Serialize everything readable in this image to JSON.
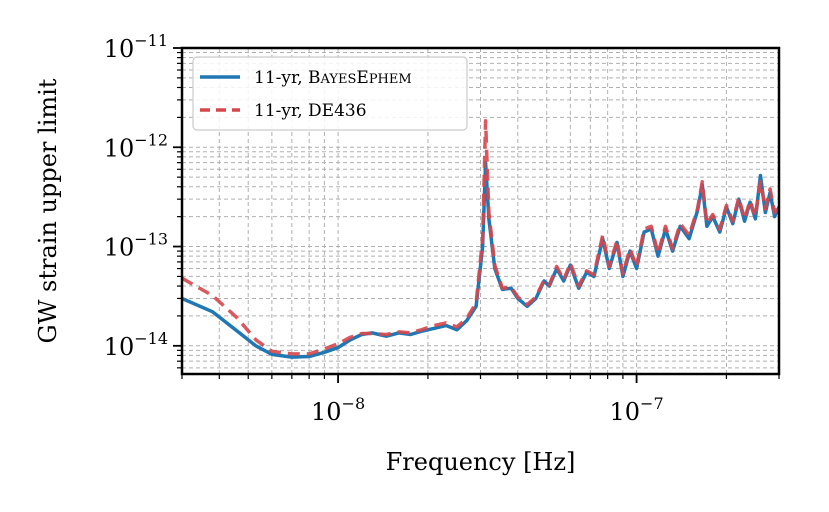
{
  "chart_data": {
    "type": "line",
    "xlabel": "Frequency [Hz]",
    "ylabel": "GW strain upper limit",
    "xscale": "log",
    "yscale": "log",
    "xlim": [
      3e-09,
      3e-07
    ],
    "ylim": [
      5.2e-15,
      1e-11
    ],
    "x_ticks": [
      {
        "value": 1e-08,
        "mantissa": "10",
        "exponent": "−8"
      },
      {
        "value": 1e-07,
        "mantissa": "10",
        "exponent": "−7"
      }
    ],
    "y_ticks": [
      {
        "value": 1e-14,
        "mantissa": "10",
        "exponent": "−14"
      },
      {
        "value": 1e-13,
        "mantissa": "10",
        "exponent": "−13"
      },
      {
        "value": 1e-12,
        "mantissa": "10",
        "exponent": "−12"
      },
      {
        "value": 1e-11,
        "mantissa": "10",
        "exponent": "−11"
      }
    ],
    "grid": true,
    "legend_position": "top-left",
    "series": [
      {
        "name_parts": [
          "11-yr, ",
          "B",
          "AYES",
          "E",
          "PHEM"
        ],
        "color": "#1f77b4",
        "style": "solid",
        "points": [
          [
            3e-09,
            3e-14
          ],
          [
            3.8e-09,
            2.2e-14
          ],
          [
            4.6e-09,
            1.4e-14
          ],
          [
            5.3e-09,
            1e-14
          ],
          [
            6e-09,
            8.2e-15
          ],
          [
            7e-09,
            7.7e-15
          ],
          [
            8e-09,
            7.8e-15
          ],
          [
            9e-09,
            8.6e-15
          ],
          [
            1e-08,
            9.6e-15
          ],
          [
            1.1e-08,
            1.15e-14
          ],
          [
            1.2e-08,
            1.3e-14
          ],
          [
            1.3e-08,
            1.35e-14
          ],
          [
            1.45e-08,
            1.25e-14
          ],
          [
            1.6e-08,
            1.35e-14
          ],
          [
            1.75e-08,
            1.3e-14
          ],
          [
            1.9e-08,
            1.4e-14
          ],
          [
            2.1e-08,
            1.5e-14
          ],
          [
            2.3e-08,
            1.6e-14
          ],
          [
            2.5e-08,
            1.45e-14
          ],
          [
            2.7e-08,
            1.8e-14
          ],
          [
            2.9e-08,
            2.5e-14
          ],
          [
            3.05e-08,
            1e-13
          ],
          [
            3.12e-08,
            7e-13
          ],
          [
            3.2e-08,
            1.9e-13
          ],
          [
            3.35e-08,
            6e-14
          ],
          [
            3.55e-08,
            3.7e-14
          ],
          [
            3.8e-08,
            3.8e-14
          ],
          [
            4e-08,
            3e-14
          ],
          [
            4.3e-08,
            2.5e-14
          ],
          [
            4.6e-08,
            3e-14
          ],
          [
            4.9e-08,
            4.5e-14
          ],
          [
            5.1e-08,
            4e-14
          ],
          [
            5.4e-08,
            6e-14
          ],
          [
            5.7e-08,
            4.5e-14
          ],
          [
            6e-08,
            6.5e-14
          ],
          [
            6.4e-08,
            3.8e-14
          ],
          [
            6.8e-08,
            5.5e-14
          ],
          [
            7.2e-08,
            5e-14
          ],
          [
            7.7e-08,
            1.2e-13
          ],
          [
            8.1e-08,
            6e-14
          ],
          [
            8.6e-08,
            1.1e-13
          ],
          [
            9e-08,
            5e-14
          ],
          [
            9.5e-08,
            9e-14
          ],
          [
            1e-07,
            6e-14
          ],
          [
            1.06e-07,
            1.4e-13
          ],
          [
            1.12e-07,
            1.5e-13
          ],
          [
            1.18e-07,
            8e-14
          ],
          [
            1.25e-07,
            1.5e-13
          ],
          [
            1.32e-07,
            9e-14
          ],
          [
            1.4e-07,
            1.6e-13
          ],
          [
            1.5e-07,
            1.2e-13
          ],
          [
            1.6e-07,
            2.3e-13
          ],
          [
            1.66e-07,
            4.2e-13
          ],
          [
            1.72e-07,
            1.6e-13
          ],
          [
            1.8e-07,
            2e-13
          ],
          [
            1.9e-07,
            1.4e-13
          ],
          [
            2e-07,
            2.5e-13
          ],
          [
            2.1e-07,
            1.7e-13
          ],
          [
            2.2e-07,
            3e-13
          ],
          [
            2.3e-07,
            1.8e-13
          ],
          [
            2.4e-07,
            2.8e-13
          ],
          [
            2.5e-07,
            1.9e-13
          ],
          [
            2.6e-07,
            5.2e-13
          ],
          [
            2.7e-07,
            2.2e-13
          ],
          [
            2.8e-07,
            3.5e-13
          ],
          [
            2.9e-07,
            2e-13
          ],
          [
            3e-07,
            2.5e-13
          ]
        ]
      },
      {
        "name_parts": [
          "11-yr, DE436"
        ],
        "color": "#d6474d",
        "style": "dashed",
        "points": [
          [
            3e-09,
            4.8e-14
          ],
          [
            3.8e-09,
            3.2e-14
          ],
          [
            4.6e-09,
            1.9e-14
          ],
          [
            5.3e-09,
            1.15e-14
          ],
          [
            6e-09,
            8.8e-15
          ],
          [
            7e-09,
            8.3e-15
          ],
          [
            8e-09,
            8.3e-15
          ],
          [
            9e-09,
            9.3e-15
          ],
          [
            1e-08,
            1.05e-14
          ],
          [
            1.1e-08,
            1.22e-14
          ],
          [
            1.2e-08,
            1.33e-14
          ],
          [
            1.3e-08,
            1.33e-14
          ],
          [
            1.45e-08,
            1.3e-14
          ],
          [
            1.6e-08,
            1.38e-14
          ],
          [
            1.75e-08,
            1.35e-14
          ],
          [
            1.9e-08,
            1.45e-14
          ],
          [
            2.1e-08,
            1.6e-14
          ],
          [
            2.3e-08,
            1.7e-14
          ],
          [
            2.5e-08,
            1.55e-14
          ],
          [
            2.7e-08,
            1.9e-14
          ],
          [
            2.9e-08,
            2.7e-14
          ],
          [
            3.05e-08,
            1.2e-13
          ],
          [
            3.12e-08,
            1.85e-12
          ],
          [
            3.2e-08,
            2.2e-13
          ],
          [
            3.35e-08,
            6.5e-14
          ],
          [
            3.55e-08,
            3.8e-14
          ],
          [
            3.8e-08,
            3.9e-14
          ],
          [
            4e-08,
            3.1e-14
          ],
          [
            4.3e-08,
            2.6e-14
          ],
          [
            4.6e-08,
            3.1e-14
          ],
          [
            4.9e-08,
            4.6e-14
          ],
          [
            5.1e-08,
            4.1e-14
          ],
          [
            5.4e-08,
            6.3e-14
          ],
          [
            5.7e-08,
            4.6e-14
          ],
          [
            6e-08,
            6.8e-14
          ],
          [
            6.4e-08,
            4e-14
          ],
          [
            6.8e-08,
            5.7e-14
          ],
          [
            7.2e-08,
            5.2e-14
          ],
          [
            7.7e-08,
            1.3e-13
          ],
          [
            8.1e-08,
            6.3e-14
          ],
          [
            8.6e-08,
            1.15e-13
          ],
          [
            9e-08,
            5.3e-14
          ],
          [
            9.5e-08,
            9.5e-14
          ],
          [
            1e-07,
            6.3e-14
          ],
          [
            1.06e-07,
            1.5e-13
          ],
          [
            1.12e-07,
            1.6e-13
          ],
          [
            1.18e-07,
            8.5e-14
          ],
          [
            1.25e-07,
            1.6e-13
          ],
          [
            1.32e-07,
            9.5e-14
          ],
          [
            1.4e-07,
            1.7e-13
          ],
          [
            1.5e-07,
            1.3e-13
          ],
          [
            1.6e-07,
            2.4e-13
          ],
          [
            1.66e-07,
            4.5e-13
          ],
          [
            1.72e-07,
            1.7e-13
          ],
          [
            1.8e-07,
            2.1e-13
          ],
          [
            1.9e-07,
            1.5e-13
          ],
          [
            2e-07,
            2.6e-13
          ],
          [
            2.1e-07,
            1.8e-13
          ],
          [
            2.2e-07,
            3.1e-13
          ],
          [
            2.3e-07,
            1.9e-13
          ],
          [
            2.4e-07,
            2.9e-13
          ],
          [
            2.5e-07,
            2e-13
          ],
          [
            2.6e-07,
            4.5e-13
          ],
          [
            2.7e-07,
            2.4e-13
          ],
          [
            2.8e-07,
            3.8e-13
          ],
          [
            2.9e-07,
            2.2e-13
          ],
          [
            3e-07,
            2.7e-13
          ]
        ]
      }
    ]
  }
}
